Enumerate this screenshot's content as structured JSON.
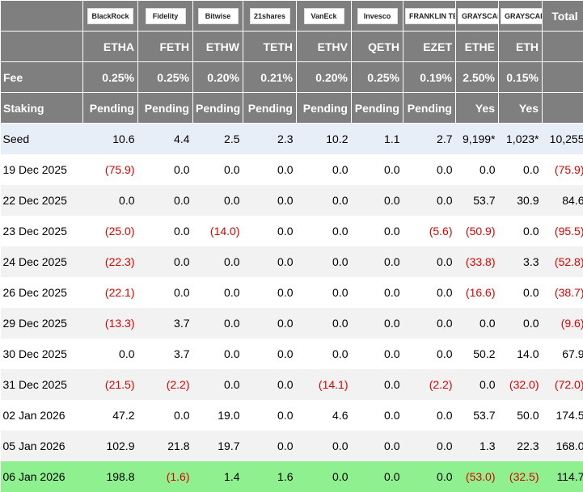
{
  "header": {
    "logos": [
      "BlackRock",
      "Fidelity",
      "Bitwise",
      "21shares",
      "VanEck",
      "Invesco",
      "FRANKLIN TEMPLETON",
      "GRAYSCALE",
      "GRAYSCALE"
    ],
    "total": "Total",
    "tickers": [
      "ETHA",
      "FETH",
      "ETHW",
      "TETH",
      "ETHV",
      "QETH",
      "EZET",
      "ETHE",
      "ETH"
    ],
    "fee_label": "Fee",
    "fees": [
      "0.25%",
      "0.25%",
      "0.20%",
      "0.21%",
      "0.20%",
      "0.25%",
      "0.19%",
      "2.50%",
      "0.15%"
    ],
    "staking_label": "Staking",
    "staking": [
      "Pending",
      "Pending",
      "Pending",
      "Pending",
      "Pending",
      "Pending",
      "Pending",
      "Yes",
      "Yes"
    ]
  },
  "rows": [
    {
      "label": "Seed",
      "cells": [
        "10.6",
        "4.4",
        "2.5",
        "2.3",
        "10.2",
        "1.1",
        "2.7",
        "9,199*",
        "1,023*",
        "10,255"
      ]
    },
    {
      "label": "19 Dec 2025",
      "cells": [
        "(75.9)",
        "0.0",
        "0.0",
        "0.0",
        "0.0",
        "0.0",
        "0.0",
        "0.0",
        "0.0",
        "(75.9)"
      ]
    },
    {
      "label": "22 Dec 2025",
      "cells": [
        "0.0",
        "0.0",
        "0.0",
        "0.0",
        "0.0",
        "0.0",
        "0.0",
        "53.7",
        "30.9",
        "84.6"
      ]
    },
    {
      "label": "23 Dec 2025",
      "cells": [
        "(25.0)",
        "0.0",
        "(14.0)",
        "0.0",
        "0.0",
        "0.0",
        "(5.6)",
        "(50.9)",
        "0.0",
        "(95.5)"
      ]
    },
    {
      "label": "24 Dec 2025",
      "cells": [
        "(22.3)",
        "0.0",
        "0.0",
        "0.0",
        "0.0",
        "0.0",
        "0.0",
        "(33.8)",
        "3.3",
        "(52.8)"
      ]
    },
    {
      "label": "26 Dec 2025",
      "cells": [
        "(22.1)",
        "0.0",
        "0.0",
        "0.0",
        "0.0",
        "0.0",
        "0.0",
        "(16.6)",
        "0.0",
        "(38.7)"
      ]
    },
    {
      "label": "29 Dec 2025",
      "cells": [
        "(13.3)",
        "3.7",
        "0.0",
        "0.0",
        "0.0",
        "0.0",
        "0.0",
        "0.0",
        "0.0",
        "(9.6)"
      ]
    },
    {
      "label": "30 Dec 2025",
      "cells": [
        "0.0",
        "3.7",
        "0.0",
        "0.0",
        "0.0",
        "0.0",
        "0.0",
        "50.2",
        "14.0",
        "67.9"
      ]
    },
    {
      "label": "31 Dec 2025",
      "cells": [
        "(21.5)",
        "(2.2)",
        "0.0",
        "0.0",
        "(14.1)",
        "0.0",
        "(2.2)",
        "0.0",
        "(32.0)",
        "(72.0)"
      ]
    },
    {
      "label": "02 Jan 2026",
      "cells": [
        "47.2",
        "0.0",
        "19.0",
        "0.0",
        "4.6",
        "0.0",
        "0.0",
        "53.7",
        "50.0",
        "174.5"
      ]
    },
    {
      "label": "05 Jan 2026",
      "cells": [
        "102.9",
        "21.8",
        "19.7",
        "0.0",
        "0.0",
        "0.0",
        "0.0",
        "1.3",
        "22.3",
        "168.0"
      ]
    },
    {
      "label": "06 Jan 2026",
      "cells": [
        "198.8",
        "(1.6)",
        "1.4",
        "1.6",
        "0.0",
        "0.0",
        "0.0",
        "(53.0)",
        "(32.5)",
        "114.7"
      ]
    }
  ]
}
